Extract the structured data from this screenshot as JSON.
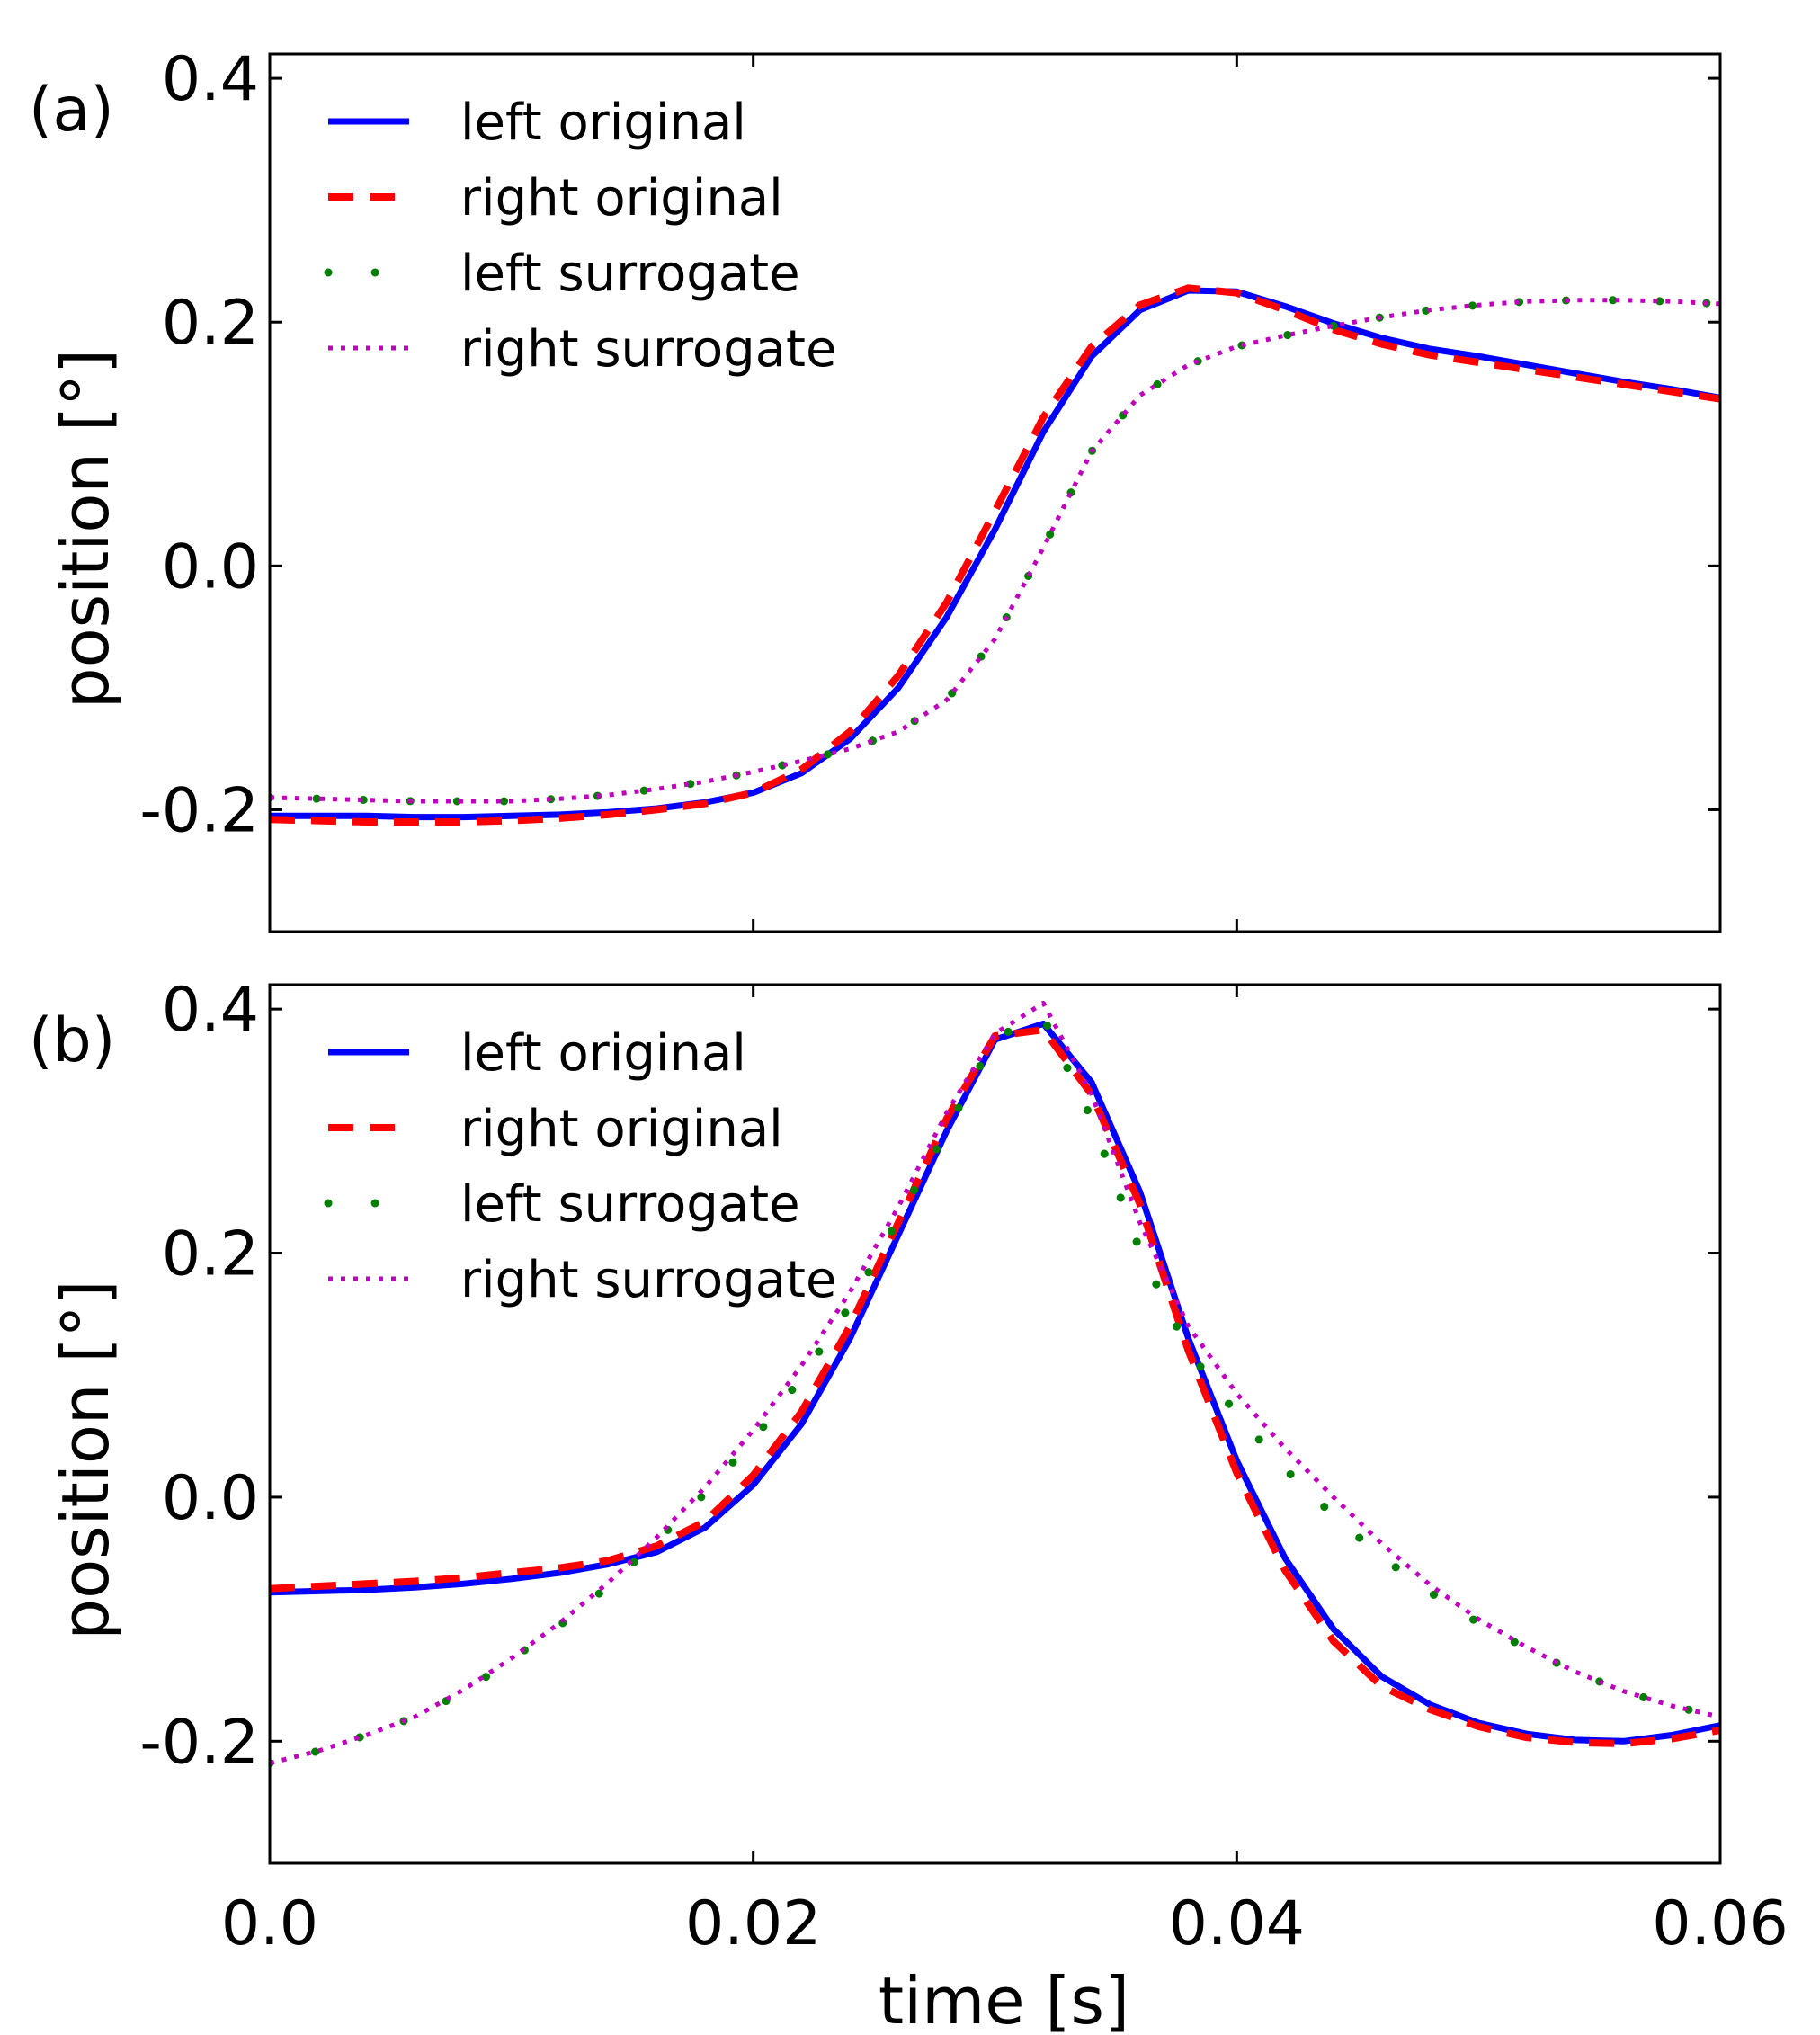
{
  "chart_data": [
    {
      "type": "line",
      "panel_label": "(a)",
      "xlabel": "",
      "ylabel": "position [°]",
      "xlim": [
        0.0,
        0.06
      ],
      "ylim": [
        -0.3,
        0.42
      ],
      "xticks": [
        0.0,
        0.02,
        0.04,
        0.06
      ],
      "xtick_labels": [
        "",
        "",
        "",
        ""
      ],
      "yticks": [
        -0.2,
        0.0,
        0.2,
        0.4
      ],
      "ytick_labels": [
        "-0.2",
        "0.0",
        "0.2",
        "0.4"
      ],
      "legend_position": "top-left",
      "series": [
        {
          "name": "left original",
          "style": "solid",
          "color": "#0000ff",
          "x": [
            0.0,
            0.002,
            0.004,
            0.006,
            0.008,
            0.01,
            0.012,
            0.014,
            0.016,
            0.018,
            0.02,
            0.022,
            0.024,
            0.026,
            0.028,
            0.03,
            0.032,
            0.034,
            0.036,
            0.038,
            0.04,
            0.042,
            0.044,
            0.046,
            0.048,
            0.05,
            0.052,
            0.054,
            0.056,
            0.058,
            0.06
          ],
          "y": [
            -0.205,
            -0.205,
            -0.205,
            -0.206,
            -0.206,
            -0.205,
            -0.204,
            -0.202,
            -0.199,
            -0.194,
            -0.186,
            -0.17,
            -0.142,
            -0.1,
            -0.042,
            0.03,
            0.11,
            0.172,
            0.21,
            0.226,
            0.225,
            0.213,
            0.199,
            0.187,
            0.178,
            0.172,
            0.165,
            0.158,
            0.151,
            0.145,
            0.138
          ]
        },
        {
          "name": "right original",
          "style": "dashed",
          "color": "#ff0000",
          "x": [
            0.0,
            0.002,
            0.004,
            0.006,
            0.008,
            0.01,
            0.012,
            0.014,
            0.016,
            0.018,
            0.02,
            0.022,
            0.024,
            0.026,
            0.028,
            0.03,
            0.032,
            0.034,
            0.036,
            0.038,
            0.04,
            0.042,
            0.044,
            0.046,
            0.048,
            0.05,
            0.052,
            0.054,
            0.056,
            0.058,
            0.06
          ],
          "y": [
            -0.208,
            -0.209,
            -0.21,
            -0.21,
            -0.21,
            -0.209,
            -0.207,
            -0.204,
            -0.2,
            -0.195,
            -0.186,
            -0.167,
            -0.136,
            -0.09,
            -0.03,
            0.045,
            0.122,
            0.18,
            0.214,
            0.228,
            0.224,
            0.21,
            0.194,
            0.182,
            0.173,
            0.167,
            0.161,
            0.155,
            0.149,
            0.143,
            0.137
          ]
        },
        {
          "name": "left surrogate",
          "style": "dotted-large",
          "color": "#007f00",
          "x": [
            0.0,
            0.002,
            0.004,
            0.006,
            0.008,
            0.01,
            0.012,
            0.014,
            0.016,
            0.018,
            0.02,
            0.022,
            0.024,
            0.026,
            0.028,
            0.03,
            0.032,
            0.034,
            0.036,
            0.038,
            0.04,
            0.042,
            0.044,
            0.046,
            0.048,
            0.05,
            0.052,
            0.054,
            0.056,
            0.058,
            0.06
          ],
          "y": [
            -0.19,
            -0.191,
            -0.192,
            -0.193,
            -0.193,
            -0.193,
            -0.191,
            -0.188,
            -0.183,
            -0.177,
            -0.169,
            -0.16,
            -0.15,
            -0.136,
            -0.11,
            -0.06,
            0.015,
            0.094,
            0.14,
            0.165,
            0.18,
            0.189,
            0.197,
            0.204,
            0.21,
            0.214,
            0.217,
            0.218,
            0.218,
            0.217,
            0.215
          ]
        },
        {
          "name": "right surrogate",
          "style": "dotted",
          "color": "#bf00bf",
          "x": [
            0.0,
            0.002,
            0.004,
            0.006,
            0.008,
            0.01,
            0.012,
            0.014,
            0.016,
            0.018,
            0.02,
            0.022,
            0.024,
            0.026,
            0.028,
            0.03,
            0.032,
            0.034,
            0.036,
            0.038,
            0.04,
            0.042,
            0.044,
            0.046,
            0.048,
            0.05,
            0.052,
            0.054,
            0.056,
            0.058,
            0.06
          ],
          "y": [
            -0.19,
            -0.191,
            -0.192,
            -0.193,
            -0.193,
            -0.193,
            -0.191,
            -0.188,
            -0.183,
            -0.177,
            -0.169,
            -0.16,
            -0.15,
            -0.136,
            -0.11,
            -0.06,
            0.015,
            0.094,
            0.14,
            0.165,
            0.18,
            0.189,
            0.197,
            0.204,
            0.21,
            0.214,
            0.217,
            0.218,
            0.218,
            0.217,
            0.215
          ]
        }
      ]
    },
    {
      "type": "line",
      "panel_label": "(b)",
      "xlabel": "time [s]",
      "ylabel": "position [°]",
      "xlim": [
        0.0,
        0.06
      ],
      "ylim": [
        -0.3,
        0.42
      ],
      "xticks": [
        0.0,
        0.02,
        0.04,
        0.06
      ],
      "xtick_labels": [
        "0.0",
        "0.02",
        "0.04",
        "0.06"
      ],
      "yticks": [
        -0.2,
        0.0,
        0.2,
        0.4
      ],
      "ytick_labels": [
        "-0.2",
        "0.0",
        "0.2",
        "0.4"
      ],
      "legend_position": "top-left",
      "series": [
        {
          "name": "left original",
          "style": "solid",
          "color": "#0000ff",
          "x": [
            0.0,
            0.002,
            0.004,
            0.006,
            0.008,
            0.01,
            0.012,
            0.014,
            0.016,
            0.018,
            0.02,
            0.022,
            0.024,
            0.026,
            0.028,
            0.03,
            0.032,
            0.034,
            0.036,
            0.038,
            0.04,
            0.042,
            0.044,
            0.046,
            0.048,
            0.05,
            0.052,
            0.054,
            0.056,
            0.058,
            0.06
          ],
          "y": [
            -0.078,
            -0.077,
            -0.076,
            -0.074,
            -0.071,
            -0.067,
            -0.062,
            -0.055,
            -0.045,
            -0.025,
            0.01,
            0.06,
            0.13,
            0.215,
            0.3,
            0.375,
            0.388,
            0.34,
            0.25,
            0.13,
            0.03,
            -0.05,
            -0.108,
            -0.147,
            -0.17,
            -0.185,
            -0.194,
            -0.199,
            -0.2,
            -0.195,
            -0.187
          ]
        },
        {
          "name": "right original",
          "style": "dashed",
          "color": "#ff0000",
          "x": [
            0.0,
            0.002,
            0.004,
            0.006,
            0.008,
            0.01,
            0.012,
            0.014,
            0.016,
            0.018,
            0.02,
            0.022,
            0.024,
            0.026,
            0.028,
            0.03,
            0.032,
            0.034,
            0.036,
            0.038,
            0.04,
            0.042,
            0.044,
            0.046,
            0.048,
            0.05,
            0.052,
            0.054,
            0.056,
            0.058,
            0.06
          ],
          "y": [
            -0.075,
            -0.073,
            -0.071,
            -0.069,
            -0.066,
            -0.062,
            -0.058,
            -0.052,
            -0.04,
            -0.02,
            0.018,
            0.07,
            0.14,
            0.225,
            0.31,
            0.378,
            0.383,
            0.33,
            0.24,
            0.12,
            0.02,
            -0.06,
            -0.118,
            -0.155,
            -0.174,
            -0.188,
            -0.197,
            -0.201,
            -0.202,
            -0.198,
            -0.191
          ]
        },
        {
          "name": "left surrogate",
          "style": "dotted-large",
          "color": "#007f00",
          "x": [
            0.0,
            0.002,
            0.004,
            0.006,
            0.008,
            0.01,
            0.012,
            0.014,
            0.016,
            0.018,
            0.02,
            0.022,
            0.024,
            0.026,
            0.028,
            0.03,
            0.032,
            0.034,
            0.036,
            0.038,
            0.04,
            0.042,
            0.044,
            0.046,
            0.048,
            0.05,
            0.052,
            0.054,
            0.056,
            0.058,
            0.06
          ],
          "y": [
            -0.218,
            -0.208,
            -0.195,
            -0.18,
            -0.16,
            -0.133,
            -0.105,
            -0.073,
            -0.036,
            0.003,
            0.047,
            0.098,
            0.157,
            0.228,
            0.3,
            0.377,
            0.393,
            0.31,
            0.202,
            0.12,
            0.068,
            0.023,
            -0.015,
            -0.049,
            -0.078,
            -0.103,
            -0.124,
            -0.143,
            -0.159,
            -0.171,
            -0.18
          ]
        },
        {
          "name": "right surrogate",
          "style": "dotted",
          "color": "#bf00bf",
          "x": [
            0.0,
            0.002,
            0.004,
            0.006,
            0.008,
            0.01,
            0.012,
            0.014,
            0.016,
            0.018,
            0.02,
            0.022,
            0.024,
            0.026,
            0.028,
            0.03,
            0.032,
            0.034,
            0.036,
            0.038,
            0.04,
            0.042,
            0.044,
            0.046,
            0.048,
            0.05,
            0.052,
            0.054,
            0.056,
            0.058,
            0.06
          ],
          "y": [
            -0.218,
            -0.208,
            -0.195,
            -0.18,
            -0.158,
            -0.132,
            -0.103,
            -0.07,
            -0.033,
            0.008,
            0.055,
            0.108,
            0.168,
            0.238,
            0.315,
            0.38,
            0.405,
            0.33,
            0.225,
            0.14,
            0.085,
            0.04,
            0.0,
            -0.038,
            -0.072,
            -0.1,
            -0.123,
            -0.143,
            -0.159,
            -0.171,
            -0.18
          ]
        }
      ]
    }
  ]
}
